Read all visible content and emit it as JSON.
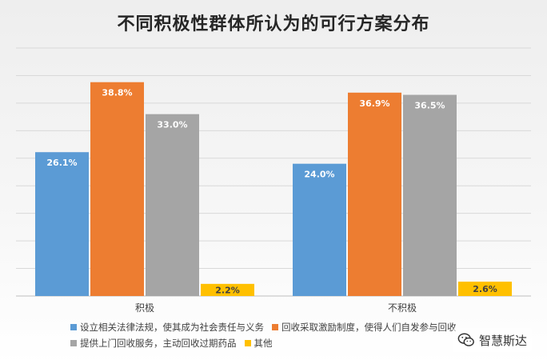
{
  "chart_data": {
    "type": "bar",
    "title": "不同积极性群体所认为的可行方案分布",
    "categories": [
      "积极",
      "不积极"
    ],
    "ylim": [
      0,
      45
    ],
    "grid": true,
    "legend_position": "bottom",
    "series": [
      {
        "name": "设立相关法律法规，使其成为社会责任与义务",
        "color": "#5b9bd5",
        "values": [
          26.1,
          24.0
        ],
        "labels": [
          "26.1%",
          "24.0%"
        ]
      },
      {
        "name": "回收采取激励制度，使得人们自发参与回收",
        "color": "#ed7d31",
        "values": [
          38.8,
          36.9
        ],
        "labels": [
          "38.8%",
          "36.9%"
        ]
      },
      {
        "name": "提供上门回收服务，主动回收过期药品",
        "color": "#a5a5a5",
        "values": [
          33.0,
          36.5
        ],
        "labels": [
          "33.0%",
          "36.5%"
        ]
      },
      {
        "name": "其他",
        "color": "#ffc000",
        "values": [
          2.2,
          2.6
        ],
        "labels": [
          "2.2%",
          "2.6%"
        ]
      }
    ]
  },
  "watermark": {
    "text": "智慧斯达",
    "icon": "wechat-icon"
  }
}
